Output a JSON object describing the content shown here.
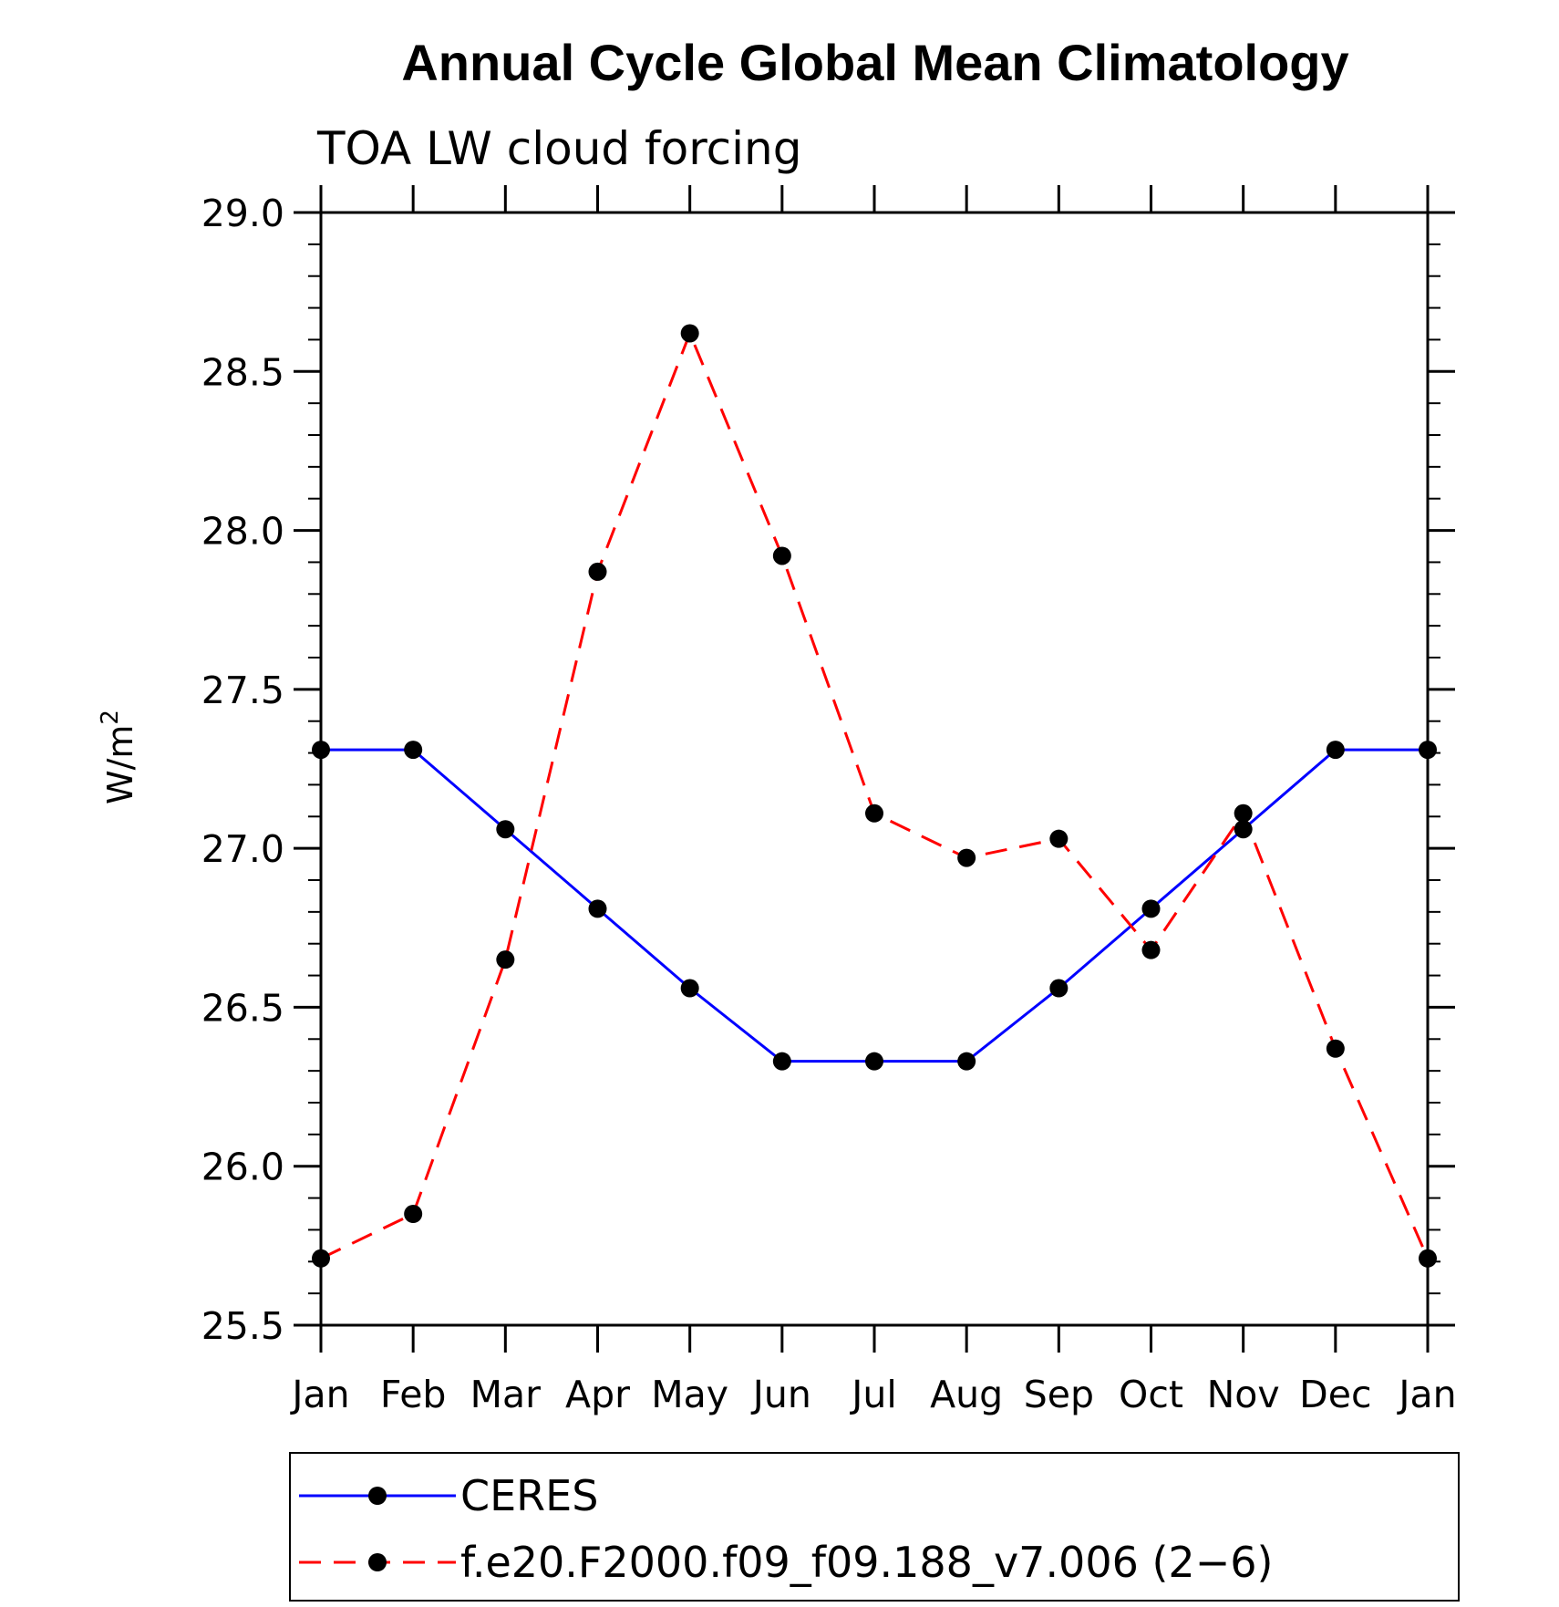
{
  "chart_data": {
    "type": "line",
    "title": "Annual Cycle Global Mean Climatology",
    "subtitle": "TOA LW cloud forcing",
    "xlabel": "",
    "ylabel": "W/m",
    "ylabel_superscript": "2",
    "categories": [
      "Jan",
      "Feb",
      "Mar",
      "Apr",
      "May",
      "Jun",
      "Jul",
      "Aug",
      "Sep",
      "Oct",
      "Nov",
      "Dec",
      "Jan"
    ],
    "ylim": [
      25.5,
      29.0
    ],
    "yticks": [
      25.5,
      26.0,
      26.5,
      27.0,
      27.5,
      28.0,
      28.5,
      29.0
    ],
    "ytick_labels": [
      "25.5",
      "26.0",
      "26.5",
      "27.0",
      "27.5",
      "28.0",
      "28.5",
      "29.0"
    ],
    "minor_y_step": 0.1,
    "grid": false,
    "legend_position": "bottom",
    "series": [
      {
        "name": "CERES",
        "color": "#0000ff",
        "dash": "solid",
        "marker": "circle",
        "values": [
          27.31,
          27.31,
          27.06,
          26.81,
          26.56,
          26.33,
          26.33,
          26.33,
          26.56,
          26.81,
          27.06,
          27.31,
          27.31
        ]
      },
      {
        "name": "f.e20.F2000.f09_f09.188_v7.006 (2−6)",
        "color": "#ff0000",
        "dash": "dashed",
        "marker": "circle",
        "values": [
          25.71,
          25.85,
          26.65,
          27.87,
          28.62,
          27.92,
          27.11,
          26.97,
          27.03,
          26.68,
          27.11,
          26.37,
          25.71
        ]
      }
    ]
  }
}
